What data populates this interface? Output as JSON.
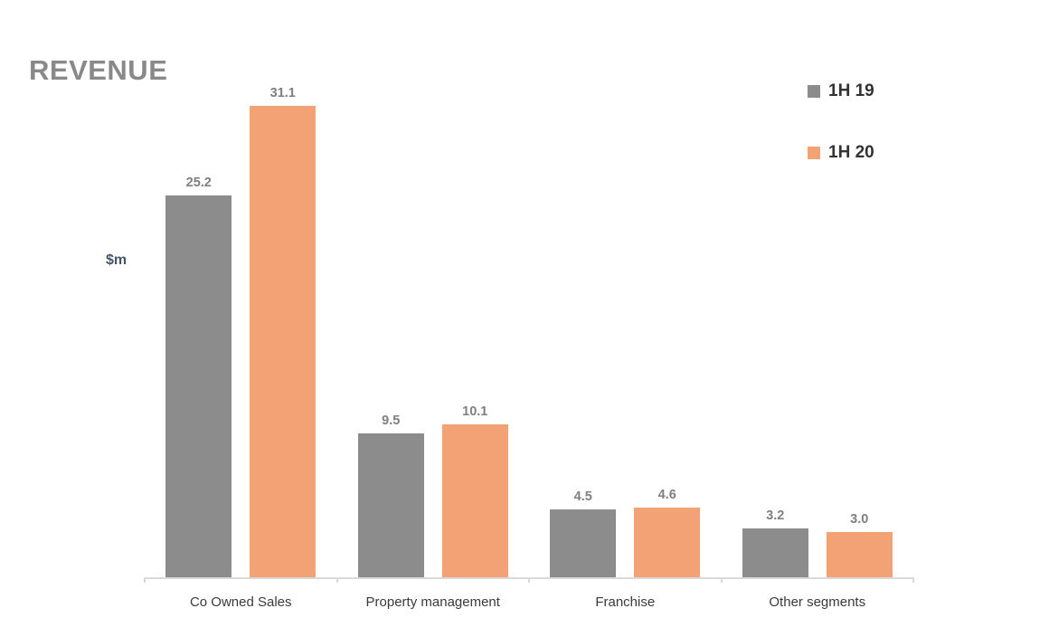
{
  "chart_data": {
    "type": "bar",
    "title": "REVENUE",
    "ylabel": "$m",
    "categories": [
      "Co Owned Sales",
      "Property management",
      "Franchise",
      "Other segments"
    ],
    "series": [
      {
        "name": "1H 19",
        "color": "#8C8C8C",
        "values": [
          25.2,
          9.5,
          4.5,
          3.2
        ]
      },
      {
        "name": "1H 20",
        "color": "#F2A274",
        "values": [
          31.1,
          10.1,
          4.6,
          3.0
        ]
      }
    ],
    "ylim": [
      0,
      31.1
    ],
    "grid": false,
    "legend_position": "top-right",
    "data_labels": true
  },
  "colors": {
    "title": "#898989",
    "ylabel": "#44546A",
    "legend_text": "#333333",
    "value_label": "#7F7F7F",
    "category_label": "#3A3A3A",
    "axis": "#D9D9D9",
    "background": "#FFFFFF"
  }
}
